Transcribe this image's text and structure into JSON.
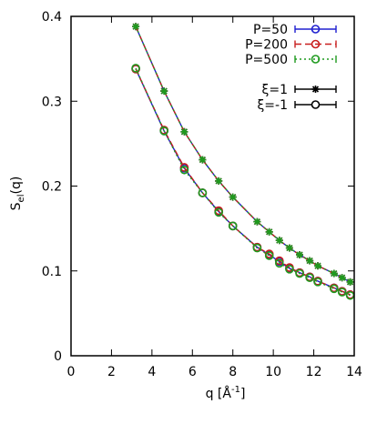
{
  "chart_data": {
    "type": "line",
    "xlabel": "q [Å",
    "xlabel_sup": "-1",
    "xlabel_close": "]",
    "ylabel": "S",
    "ylabel_sub": "el",
    "ylabel_tail": "(q)",
    "xlim": [
      0,
      14
    ],
    "ylim": [
      0,
      0.4
    ],
    "xticks": [
      "0",
      "2",
      "4",
      "6",
      "8",
      "10",
      "12",
      "14"
    ],
    "yticks": [
      "0",
      "0.1",
      "0.2",
      "0.3",
      "0.4"
    ],
    "grid": false,
    "legend_position": "top-right",
    "colors": {
      "P=50": "#2020d0",
      "P=200": "#c81e1e",
      "P=500": "#1e9a1e"
    },
    "series": [
      {
        "name": "P=50",
        "xi": "1",
        "x": [
          3.2,
          4.6,
          5.6,
          6.5,
          7.3,
          8.0,
          9.2,
          9.8,
          10.3,
          10.8,
          11.3,
          11.8,
          12.2,
          13.0,
          13.4,
          13.8
        ],
        "y": [
          0.388,
          0.312,
          0.264,
          0.231,
          0.206,
          0.187,
          0.158,
          0.146,
          0.136,
          0.127,
          0.119,
          0.112,
          0.106,
          0.097,
          0.092,
          0.087
        ]
      },
      {
        "name": "P=50",
        "xi": "-1",
        "x": [
          3.2,
          4.6,
          5.6,
          6.5,
          7.3,
          8.0,
          9.2,
          9.8,
          10.3,
          10.8,
          11.3,
          11.8,
          12.2,
          13.0,
          13.4,
          13.8
        ],
        "y": [
          0.338,
          0.265,
          0.221,
          0.192,
          0.17,
          0.153,
          0.128,
          0.119,
          0.111,
          0.103,
          0.098,
          0.093,
          0.088,
          0.08,
          0.076,
          0.072
        ]
      },
      {
        "name": "P=200",
        "xi": "1",
        "x": [
          3.2,
          4.6,
          5.6,
          6.5,
          7.3,
          8.0,
          9.2,
          9.8,
          10.3,
          10.8,
          11.3,
          11.8,
          12.2,
          13.0,
          13.4,
          13.8
        ],
        "y": [
          0.388,
          0.312,
          0.264,
          0.231,
          0.206,
          0.187,
          0.158,
          0.146,
          0.136,
          0.127,
          0.119,
          0.112,
          0.106,
          0.097,
          0.092,
          0.087
        ]
      },
      {
        "name": "P=200",
        "xi": "-1",
        "x": [
          3.2,
          4.6,
          5.6,
          6.5,
          7.3,
          8.0,
          9.2,
          9.8,
          10.3,
          10.8,
          11.3,
          11.8,
          12.2,
          13.0,
          13.4,
          13.8
        ],
        "y": [
          0.338,
          0.266,
          0.222,
          0.192,
          0.171,
          0.153,
          0.128,
          0.12,
          0.112,
          0.104,
          0.098,
          0.093,
          0.088,
          0.08,
          0.076,
          0.072
        ]
      },
      {
        "name": "P=500",
        "xi": "1",
        "x": [
          3.2,
          4.6,
          5.6,
          6.5,
          7.3,
          8.0,
          9.2,
          9.8,
          10.3,
          10.8,
          11.3,
          11.8,
          12.2,
          13.0,
          13.4,
          13.8
        ],
        "y": [
          0.388,
          0.312,
          0.264,
          0.231,
          0.206,
          0.187,
          0.158,
          0.146,
          0.136,
          0.127,
          0.119,
          0.112,
          0.106,
          0.097,
          0.092,
          0.087
        ]
      },
      {
        "name": "P=500",
        "xi": "-1",
        "x": [
          3.2,
          4.6,
          5.6,
          6.5,
          7.3,
          8.0,
          9.2,
          9.8,
          10.3,
          10.8,
          11.3,
          11.8,
          12.2,
          13.0,
          13.4,
          13.8
        ],
        "y": [
          0.339,
          0.265,
          0.219,
          0.192,
          0.169,
          0.153,
          0.127,
          0.118,
          0.109,
          0.102,
          0.097,
          0.092,
          0.087,
          0.079,
          0.075,
          0.071
        ]
      }
    ],
    "legend": {
      "series": [
        {
          "label": "P=50",
          "style": "solid"
        },
        {
          "label": "P=200",
          "style": "dashed"
        },
        {
          "label": "P=500",
          "style": "dotted"
        }
      ],
      "markers": [
        {
          "label": "ξ=1",
          "marker": "asterisk"
        },
        {
          "label": "ξ=-1",
          "marker": "circle"
        }
      ]
    }
  }
}
